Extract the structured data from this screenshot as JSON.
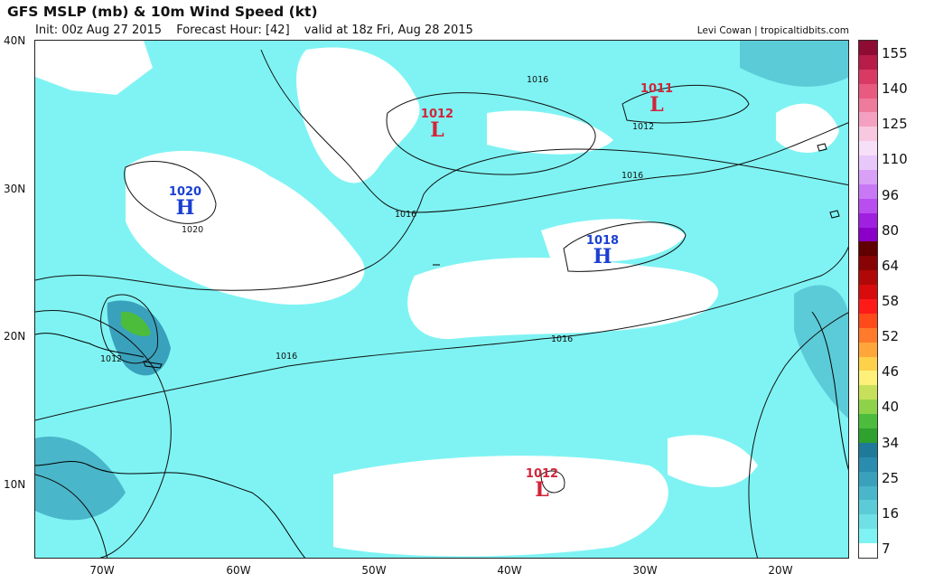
{
  "header": {
    "title": "GFS MSLP (mb) & 10m Wind Speed (kt)",
    "init": "Init: 00z Aug 27 2015",
    "forecast_hour": "Forecast Hour: [42]",
    "valid": "valid at 18z Fri, Aug 28 2015",
    "credit": "Levi Cowan | tropicaltidbits.com"
  },
  "axes": {
    "lat_labels": [
      "40N",
      "30N",
      "20N",
      "10N"
    ],
    "lon_labels": [
      "70W",
      "60W",
      "50W",
      "40W",
      "30W",
      "20W"
    ]
  },
  "colorbar": {
    "labels": [
      "155",
      "140",
      "125",
      "110",
      "96",
      "80",
      "64",
      "58",
      "52",
      "46",
      "40",
      "34",
      "25",
      "16",
      "7"
    ],
    "colors": [
      "#ffffff",
      "#7ff3f3",
      "#6ee0e6",
      "#5ccbd8",
      "#4ab6ca",
      "#3aa1bc",
      "#2a8cae",
      "#1f7a9a",
      "#2ea12e",
      "#4cbc3c",
      "#8ed24a",
      "#c6e05a",
      "#fff07a",
      "#ffd04a",
      "#ffa63a",
      "#ff7a2a",
      "#ff4a1a",
      "#ff1a1a",
      "#d80c0c",
      "#b00808",
      "#880404",
      "#600000",
      "#8a00c8",
      "#a020e0",
      "#b84ef0",
      "#c878f4",
      "#d8a0f6",
      "#e8c8fa",
      "#f6e0f8",
      "#f8c8e0",
      "#f4a0c0",
      "#ee7a9c",
      "#e85a80",
      "#d83a64",
      "#b81c48",
      "#8e0c34"
    ]
  },
  "pressure_centers": [
    {
      "type": "H",
      "value": "1020"
    },
    {
      "type": "L",
      "value": "1012"
    },
    {
      "type": "L",
      "value": "1011"
    },
    {
      "type": "H",
      "value": "1018"
    },
    {
      "type": "L",
      "value": "1012"
    }
  ],
  "isobar_labels": [
    "1016",
    "1012",
    "1020",
    "1016",
    "1016",
    "1016",
    "1012",
    "1016"
  ]
}
